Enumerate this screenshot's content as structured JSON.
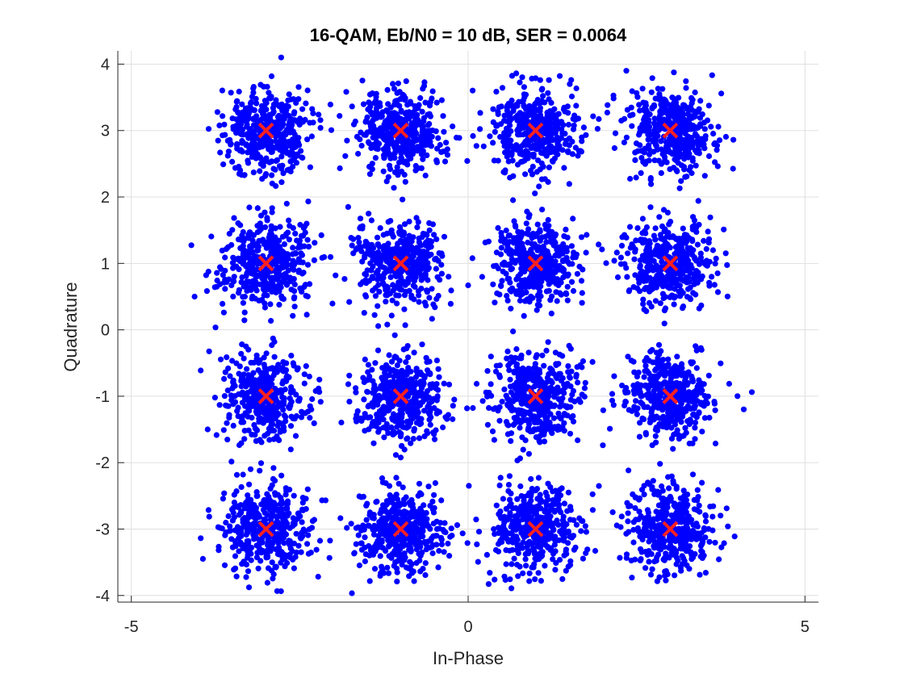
{
  "chart_data": {
    "type": "scatter",
    "title": "16-QAM, Eb/N0 = 10 dB, SER = 0.0064",
    "xlabel": "In-Phase",
    "ylabel": "Quadrature",
    "xlim": [
      -5.2,
      5.2
    ],
    "ylim": [
      -4.1,
      4.2
    ],
    "xticks": [
      -5,
      0,
      5
    ],
    "yticks": [
      -4,
      -3,
      -2,
      -1,
      0,
      1,
      2,
      3,
      4
    ],
    "grid": true,
    "received_color": "#0000ff",
    "reference_color": "#ff2020",
    "constellation": {
      "i_levels": [
        -3,
        -1,
        1,
        3
      ],
      "q_levels": [
        -3,
        -1,
        1,
        3
      ]
    },
    "noise_sigma": 0.32,
    "points_per_symbol": 420
  }
}
